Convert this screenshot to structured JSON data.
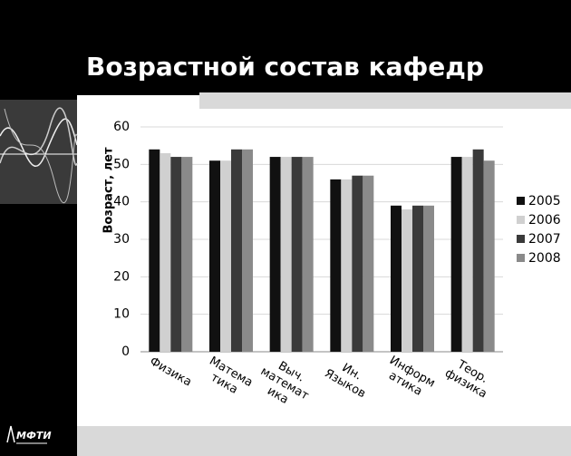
{
  "logo": "МФТИ",
  "chart_data": {
    "type": "bar",
    "title": "Возрастной состав кафедр",
    "y_label": "Возраст, лет",
    "categories": [
      "Физика",
      "Матема\nтика",
      "Выч.\nматемат\nика",
      "Ин.\nЯзыков",
      "Информ\nатика",
      "Теор.\nфизика"
    ],
    "series": [
      {
        "name": "2005",
        "color": "#111111",
        "values": [
          54,
          51,
          52,
          46,
          39,
          52
        ]
      },
      {
        "name": "2006",
        "color": "#d0d0d0",
        "values": [
          53,
          51,
          52,
          46,
          38,
          52
        ]
      },
      {
        "name": "2007",
        "color": "#3a3a3a",
        "values": [
          52,
          54,
          52,
          47,
          39,
          54
        ]
      },
      {
        "name": "2008",
        "color": "#8a8a8a",
        "values": [
          52,
          54,
          52,
          47,
          39,
          51
        ]
      }
    ],
    "ylim": [
      0,
      60
    ],
    "yticks": [
      0,
      10,
      20,
      30,
      40,
      50,
      60
    ],
    "grid": true,
    "legend": "right"
  }
}
